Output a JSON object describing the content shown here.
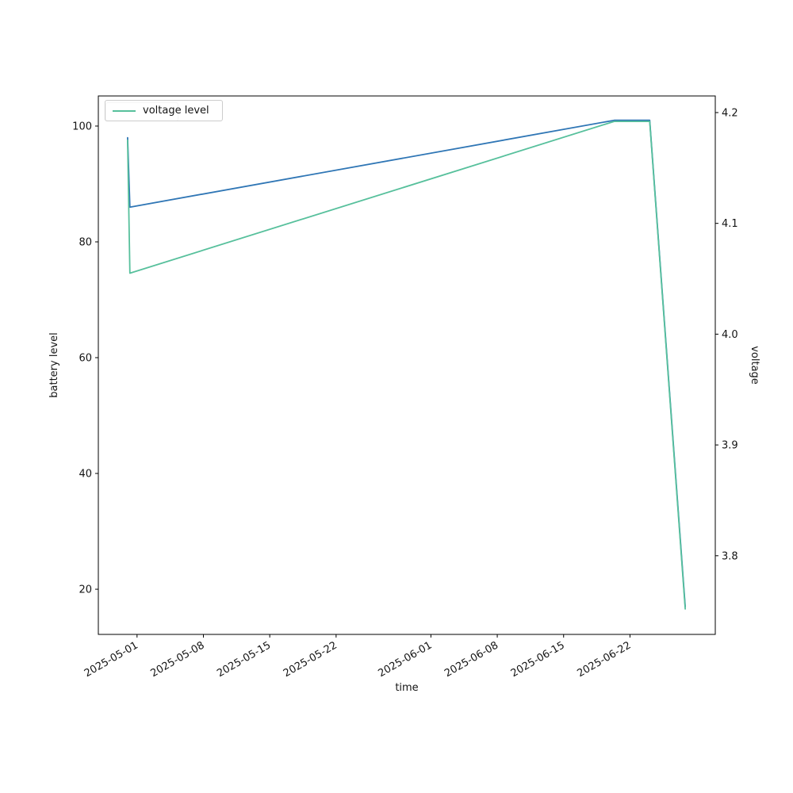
{
  "legend": {
    "label": "voltage level",
    "sample_color": "#57c09c",
    "second_legend_box_partially_hidden": true
  },
  "axes": {
    "xlabel": "time",
    "ylabel_left": "battery level",
    "ylabel_right": "voltage"
  },
  "chart_data": {
    "type": "line",
    "title": "",
    "grid": false,
    "legend_position": "upper-left",
    "xlabel": "time",
    "ylabel_left": "battery level",
    "ylabel_right": "voltage",
    "x_tick_labels": [
      "2025-05-01",
      "2025-05-08",
      "2025-05-15",
      "2025-05-22",
      "2025-06-01",
      "2025-06-08",
      "2025-06-15",
      "2025-06-22"
    ],
    "y_left_tick_labels": [
      "20",
      "40",
      "60",
      "80",
      "100"
    ],
    "y_right_tick_labels": [
      "3.8",
      "3.9",
      "4.0",
      "4.1",
      "4.2"
    ],
    "x_domain": [
      "2025-04-26T22:00",
      "2025-07-01T00:00"
    ],
    "y_left_range": [
      12.2,
      105.2
    ],
    "y_right_range": [
      3.729,
      4.215
    ],
    "series": [
      {
        "name": "battery level",
        "axis": "left",
        "color": "#2f76b5",
        "points": [
          [
            "2025-04-30T00:00",
            98
          ],
          [
            "2025-04-30T06:00",
            86
          ],
          [
            "2025-06-20T08:00",
            101
          ],
          [
            "2025-06-24T02:00",
            101
          ],
          [
            "2025-06-27T20:00",
            17
          ]
        ]
      },
      {
        "name": "voltage level",
        "axis": "right",
        "color": "#57c09c",
        "points": [
          [
            "2025-04-30T00:00",
            4.175
          ],
          [
            "2025-04-30T06:00",
            4.055
          ],
          [
            "2025-06-20T08:00",
            4.192
          ],
          [
            "2025-06-24T02:00",
            4.192
          ],
          [
            "2025-06-27T20:00",
            3.752
          ]
        ]
      }
    ]
  }
}
